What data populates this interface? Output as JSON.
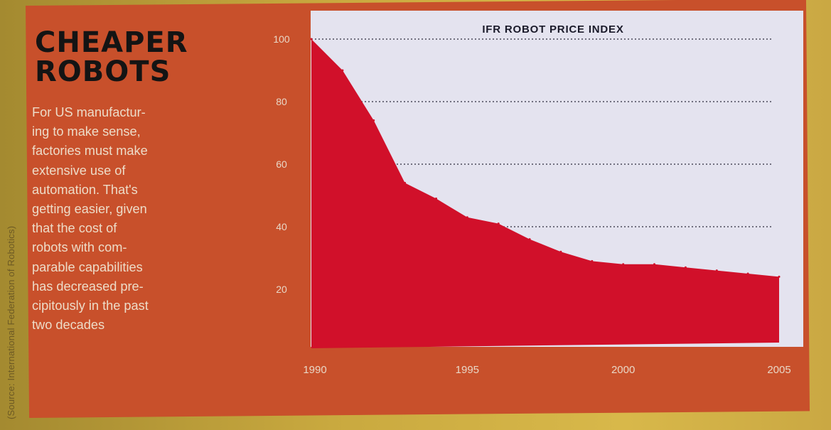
{
  "article": {
    "headline_line1": "CHEAPER",
    "headline_line2": "ROBOTS",
    "body": "For US manufactur-\ning to make sense,\nfactories must make\nextensive use of\nautomation. That's\ngetting easier, given\nthat the cost of\nrobots with com-\nparable capabilities\nhas decreased pre-\ncipitously in the past\ntwo decades",
    "source": "(Source: International Federation of Robotics)"
  },
  "colors": {
    "panel": "#c8502b",
    "chart_background": "#e4e3ef",
    "area_fill": "#d1102a",
    "headline": "#141414",
    "label": "#e9d7c6"
  },
  "chart_data": {
    "type": "area",
    "title": "IFR ROBOT PRICE INDEX",
    "xlabel": "",
    "ylabel": "",
    "x": [
      1990,
      1991,
      1992,
      1993,
      1994,
      1995,
      1996,
      1997,
      1998,
      1999,
      2000,
      2001,
      2002,
      2003,
      2004,
      2005
    ],
    "values": [
      100,
      90,
      74,
      54,
      49,
      43,
      41,
      36,
      32,
      29,
      28,
      28,
      27,
      26,
      25,
      24
    ],
    "x_ticks": [
      1990,
      1995,
      2000,
      2005
    ],
    "x_tick_labels": [
      "1990",
      "1995",
      "2000",
      "2005"
    ],
    "y_ticks": [
      20,
      40,
      60,
      80,
      100
    ],
    "y_tick_labels": [
      "20",
      "40",
      "60",
      "80",
      "100"
    ],
    "xlim": [
      1990,
      2005
    ],
    "ylim": [
      0,
      100
    ],
    "grid": "horizontal dotted"
  }
}
